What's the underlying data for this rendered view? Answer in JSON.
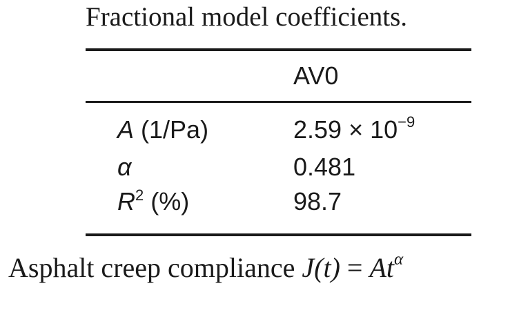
{
  "caption": "Fractional model coefficients.",
  "table": {
    "column_header": "AV0",
    "rows": [
      {
        "param_symbol": "A",
        "param_unit": "(1/Pa)",
        "value_mantissa": "2.59 × 10",
        "value_exponent": "−9"
      },
      {
        "param_symbol": "α",
        "value": "0.481"
      },
      {
        "param_symbol": "R",
        "param_superscript": "2",
        "param_unit": "(%)",
        "value": "98.7"
      }
    ]
  },
  "footer": {
    "text": "Asphalt creep compliance",
    "formula_lhs": "J(t)",
    "formula_eq": "=",
    "formula_rhs": "At",
    "formula_exponent": "α"
  }
}
